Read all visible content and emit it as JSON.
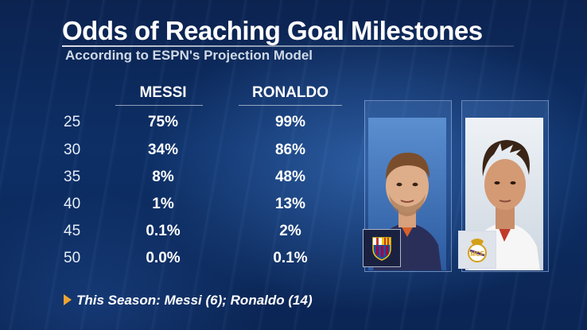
{
  "title": "Odds of Reaching Goal Milestones",
  "subtitle": "According to ESPN's Projection Model",
  "columns": [
    "MESSI",
    "RONALDO"
  ],
  "rows": [
    {
      "milestone": "25",
      "messi": "75%",
      "ronaldo": "99%"
    },
    {
      "milestone": "30",
      "messi": "34%",
      "ronaldo": "86%"
    },
    {
      "milestone": "35",
      "messi": "8%",
      "ronaldo": "48%"
    },
    {
      "milestone": "40",
      "messi": "1%",
      "ronaldo": "13%"
    },
    {
      "milestone": "45",
      "messi": "0.1%",
      "ronaldo": "2%"
    },
    {
      "milestone": "50",
      "messi": "0.0%",
      "ronaldo": "0.1%"
    }
  ],
  "footer": "This Season: Messi (6); Ronaldo (14)",
  "colors": {
    "background": "#0d2f66",
    "accent": "#f0a430",
    "barcelona_blue": "#1d4f9c",
    "barcelona_red": "#a50044",
    "madrid_white": "#f2f2f2"
  }
}
